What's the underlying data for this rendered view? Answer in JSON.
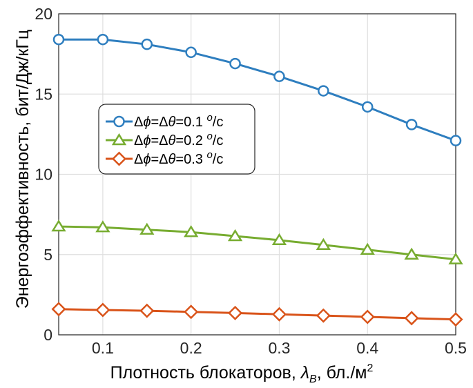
{
  "chart_data": {
    "type": "line",
    "xlabel_parts": {
      "main": "Плотность блокаторов, ",
      "var": "λ",
      "sub": "B",
      "rest": ", бл./м",
      "sup": "2"
    },
    "ylabel": "Энергоэффективность, бит/Дж/кГц",
    "xlim": [
      0.05,
      0.5
    ],
    "ylim": [
      0,
      20
    ],
    "x_ticks": [
      0.1,
      0.2,
      0.3,
      0.4,
      0.5
    ],
    "x_tick_labels": [
      "0.1",
      "0.2",
      "0.3",
      "0.4",
      "0.5"
    ],
    "y_ticks": [
      0,
      5,
      10,
      15,
      20
    ],
    "y_tick_labels": [
      "0",
      "5",
      "10",
      "15",
      "20"
    ],
    "grid": true,
    "legend_position": "left-middle",
    "x": [
      0.05,
      0.1,
      0.15,
      0.2,
      0.25,
      0.3,
      0.35,
      0.4,
      0.45,
      0.5
    ],
    "series": [
      {
        "name": "Δϕ=Δθ=0.1 °/с",
        "name_parts": [
          "Δ",
          "ϕ",
          "=Δ",
          "θ",
          "=0.1 ",
          "o",
          "/с"
        ],
        "marker": "circle",
        "color": "#2e7ebf",
        "values": [
          18.4,
          18.4,
          18.1,
          17.6,
          16.9,
          16.1,
          15.2,
          14.2,
          13.1,
          12.1
        ]
      },
      {
        "name": "Δϕ=Δθ=0.2 °/с",
        "name_parts": [
          "Δ",
          "ϕ",
          "=Δ",
          "θ",
          "=0.2 ",
          "o",
          "/с"
        ],
        "marker": "triangle",
        "color": "#77ac30",
        "values": [
          6.75,
          6.7,
          6.55,
          6.4,
          6.15,
          5.9,
          5.6,
          5.3,
          5.0,
          4.7
        ]
      },
      {
        "name": "Δϕ=Δθ=0.3 °/с",
        "name_parts": [
          "Δ",
          "ϕ",
          "=Δ",
          "θ",
          "=0.3 ",
          "o",
          "/с"
        ],
        "marker": "diamond",
        "color": "#d95319",
        "values": [
          1.6,
          1.55,
          1.5,
          1.43,
          1.36,
          1.28,
          1.2,
          1.12,
          1.04,
          0.96
        ]
      }
    ]
  }
}
